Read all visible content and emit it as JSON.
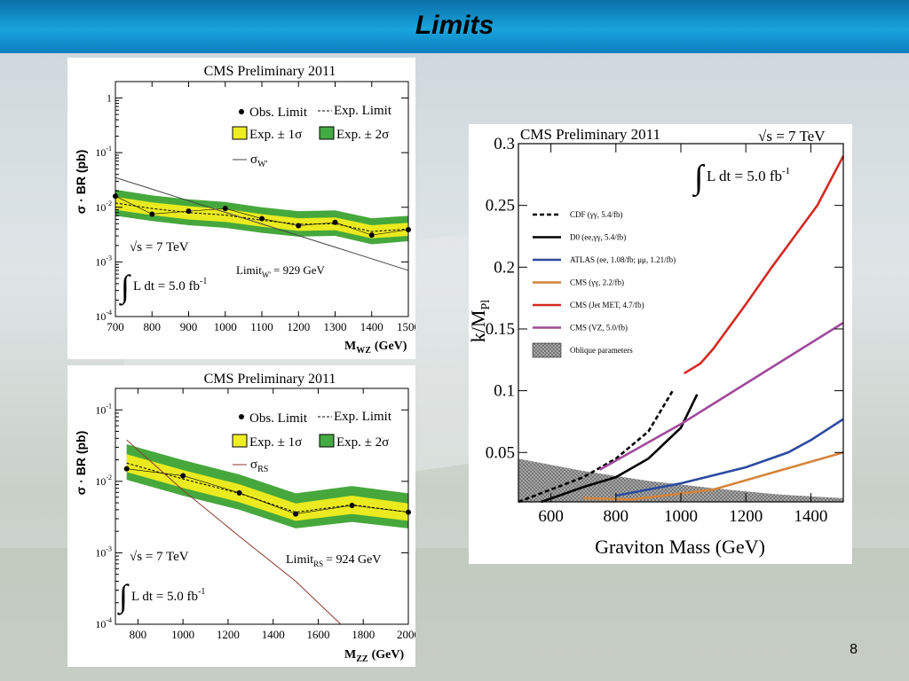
{
  "slide": {
    "title": "Limits",
    "page_number": "8"
  },
  "chart_data": [
    {
      "id": "wz",
      "type": "line",
      "title": "CMS Preliminary 2011",
      "ylabel": "σ · BR (pb)",
      "xlabel": "M",
      "xlabel_sub": "WZ",
      "xlabel_unit": "(GeV)",
      "xlim": [
        700,
        1500
      ],
      "ylim": [
        0.0001,
        2
      ],
      "log_y": true,
      "xticks": [
        700,
        800,
        900,
        1000,
        1100,
        1200,
        1300,
        1400,
        1500
      ],
      "yticks": [
        {
          "v": 1,
          "t": "1",
          "e": ""
        },
        {
          "v": 0.1,
          "t": "10",
          "e": "-1"
        },
        {
          "v": 0.01,
          "t": "10",
          "e": "-2"
        },
        {
          "v": 0.001,
          "t": "10",
          "e": "-3"
        },
        {
          "v": 0.0001,
          "t": "10",
          "e": "-4"
        }
      ],
      "legend": {
        "obs": "Obs. Limit",
        "exp": "Exp. Limit",
        "band1": "Exp. ± 1σ",
        "band2": "Exp. ± 2σ",
        "theory": "σ",
        "theory_sub": "W'"
      },
      "annotations": {
        "energy": "√s = 7 TeV",
        "lumi": "L dt = 5.0 fb",
        "lumi_exp": "-1",
        "limit": "Limit",
        "limit_sub": "W'",
        "limit_val": "= 929 GeV"
      },
      "x": [
        700,
        800,
        900,
        1000,
        1100,
        1200,
        1300,
        1400,
        1500
      ],
      "obs": [
        0.016,
        0.0075,
        0.0085,
        0.0095,
        0.0062,
        0.0046,
        0.0053,
        0.0031,
        0.0039
      ],
      "exp": [
        0.012,
        0.0095,
        0.008,
        0.0072,
        0.0058,
        0.0049,
        0.005,
        0.0036,
        0.004
      ],
      "exp_1s": [
        [
          0.009,
          0.0155
        ],
        [
          0.0072,
          0.0123
        ],
        [
          0.006,
          0.0105
        ],
        [
          0.0054,
          0.0093
        ],
        [
          0.0044,
          0.0075
        ],
        [
          0.0037,
          0.0063
        ],
        [
          0.0038,
          0.0065
        ],
        [
          0.0027,
          0.0047
        ],
        [
          0.003,
          0.0052
        ]
      ],
      "exp_2s": [
        [
          0.007,
          0.021
        ],
        [
          0.0056,
          0.0165
        ],
        [
          0.0047,
          0.014
        ],
        [
          0.0042,
          0.0125
        ],
        [
          0.0034,
          0.01
        ],
        [
          0.0029,
          0.0085
        ],
        [
          0.003,
          0.0088
        ],
        [
          0.0021,
          0.0063
        ],
        [
          0.0024,
          0.007
        ]
      ],
      "theory_x": [
        700,
        1500
      ],
      "theory_y": [
        0.035,
        0.0007
      ]
    },
    {
      "id": "zz",
      "type": "line",
      "title": "CMS Preliminary 2011",
      "ylabel": "σ · BR (pb)",
      "xlabel": "M",
      "xlabel_sub": "ZZ",
      "xlabel_unit": "(GeV)",
      "xlim": [
        700,
        2000
      ],
      "ylim": [
        0.0001,
        0.2
      ],
      "log_y": true,
      "xticks": [
        800,
        1000,
        1200,
        1400,
        1600,
        1800,
        2000
      ],
      "yticks": [
        {
          "v": 0.1,
          "t": "10",
          "e": "-1"
        },
        {
          "v": 0.01,
          "t": "10",
          "e": "-2"
        },
        {
          "v": 0.001,
          "t": "10",
          "e": "-3"
        },
        {
          "v": 0.0001,
          "t": "10",
          "e": "-4"
        }
      ],
      "legend": {
        "obs": "Obs. Limit",
        "exp": "Exp. Limit",
        "band1": "Exp. ± 1σ",
        "band2": "Exp. ± 2σ",
        "theory": "σ",
        "theory_sub": "RS"
      },
      "annotations": {
        "energy": "√s = 7 TeV",
        "lumi": "L dt = 5.0 fb",
        "lumi_exp": "-1",
        "limit": "Limit",
        "limit_sub": "RS",
        "limit_val": "= 924 GeV"
      },
      "x": [
        750,
        1000,
        1250,
        1500,
        1750,
        2000
      ],
      "obs": [
        0.015,
        0.012,
        0.0069,
        0.0035,
        0.0046,
        0.0037
      ],
      "exp": [
        0.018,
        0.0108,
        0.0068,
        0.0037,
        0.0047,
        0.0037
      ],
      "exp_1s": [
        [
          0.0135,
          0.024
        ],
        [
          0.0081,
          0.0144
        ],
        [
          0.0051,
          0.0091
        ],
        [
          0.0028,
          0.0049
        ],
        [
          0.0035,
          0.0063
        ],
        [
          0.0028,
          0.0049
        ]
      ],
      "exp_2s": [
        [
          0.0105,
          0.033
        ],
        [
          0.0063,
          0.0198
        ],
        [
          0.004,
          0.0125
        ],
        [
          0.0022,
          0.0068
        ],
        [
          0.0027,
          0.0086
        ],
        [
          0.0022,
          0.0068
        ]
      ],
      "theory_x": [
        750,
        1000,
        1250,
        1500,
        1700
      ],
      "theory_y": [
        0.038,
        0.0075,
        0.0017,
        0.0004,
        0.0001
      ]
    },
    {
      "id": "grav",
      "type": "line",
      "title": "CMS Preliminary 2011",
      "energy": "√s = 7 TeV",
      "lumi": "L dt = 5.0 fb",
      "lumi_exp": "-1",
      "xlabel": "Graviton Mass (GeV)",
      "ylabel": "k/M",
      "ylabel_sub": "Pl",
      "xlim": [
        500,
        1500
      ],
      "ylim": [
        0.01,
        0.3
      ],
      "xticks": [
        600,
        800,
        1000,
        1200,
        1400
      ],
      "yticks": [
        0.05,
        0.1,
        0.15,
        0.2,
        0.25,
        0.3
      ],
      "ytick_labels": [
        "0.05",
        "0.1",
        "0.15",
        "0.2",
        "0.25",
        "0.3"
      ],
      "oblique_label": "Oblique parameters",
      "oblique_boundary": {
        "x": [
          500,
          700,
          900,
          1100,
          1300,
          1500
        ],
        "y": [
          0.045,
          0.035,
          0.027,
          0.021,
          0.016,
          0.013
        ]
      },
      "series": [
        {
          "name": "CDF (γγ, 5.4/fb)",
          "color": "#000000",
          "dash": true,
          "x": [
            500,
            600,
            700,
            800,
            900,
            975
          ],
          "y": [
            0.01,
            0.02,
            0.03,
            0.045,
            0.067,
            0.1
          ]
        },
        {
          "name": "D0 (ee,γγ, 5.4/fb)",
          "color": "#000000",
          "dash": false,
          "x": [
            570,
            700,
            800,
            900,
            1000,
            1050
          ],
          "y": [
            0.01,
            0.022,
            0.03,
            0.045,
            0.07,
            0.097
          ]
        },
        {
          "name": "ATLAS (ee, 1.08/fb; μμ, 1.21/fb)",
          "color": "#2b4aa0",
          "dash": false,
          "x": [
            800,
            1000,
            1200,
            1330,
            1400,
            1500
          ],
          "y": [
            0.015,
            0.025,
            0.038,
            0.05,
            0.06,
            0.077
          ]
        },
        {
          "name": "CMS (γγ, 2.2/fb)",
          "color": "#d4843a",
          "dash": false,
          "x": [
            700,
            850,
            1100,
            1300,
            1500
          ],
          "y": [
            0.013,
            0.012,
            0.02,
            0.035,
            0.05
          ]
        },
        {
          "name": "CMS (Jet MET, 4.7/fb)",
          "color": "#d42a22",
          "dash": false,
          "x": [
            1010,
            1060,
            1100,
            1200,
            1280,
            1350,
            1420,
            1500
          ],
          "y": [
            0.114,
            0.122,
            0.134,
            0.17,
            0.2,
            0.225,
            0.25,
            0.29
          ]
        },
        {
          "name": "CMS (VZ, 5.0/fb)",
          "color": "#a04a9a",
          "dash": false,
          "x": [
            750,
            1000,
            1250,
            1500
          ],
          "y": [
            0.036,
            0.073,
            0.114,
            0.155
          ]
        }
      ]
    }
  ]
}
